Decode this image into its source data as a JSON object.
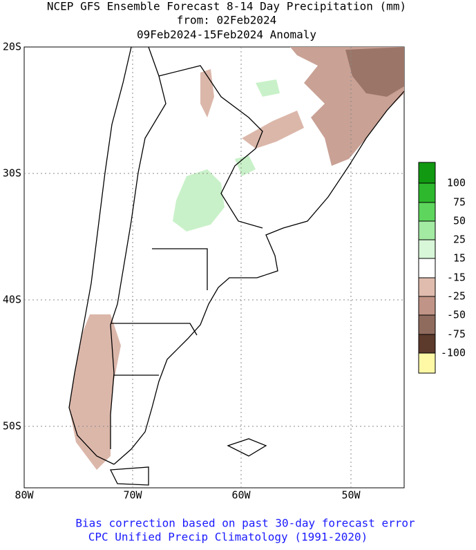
{
  "title": {
    "lines": [
      "NCEP GFS Ensemble Forecast 8-14 Day Precipitation (mm)",
      "from: 02Feb2024",
      "09Feb2024-15Feb2024 Anomaly"
    ]
  },
  "map": {
    "lat_labels": [
      "20S",
      "30S",
      "40S",
      "50S"
    ],
    "lon_labels": [
      "80W",
      "70W",
      "60W",
      "50W"
    ]
  },
  "legend": {
    "labels": [
      "100",
      "75",
      "50",
      "25",
      "15",
      "-15",
      "-25",
      "-50",
      "-75",
      "-100"
    ],
    "colors": [
      "#119911",
      "#2db82d",
      "#5ed65e",
      "#a3eaa3",
      "#d8f6d8",
      "#ffffff",
      "#dfbcae",
      "#c09486",
      "#8f6b5e",
      "#5c3a2c",
      "#fff9a6"
    ]
  },
  "footer": {
    "lines": [
      "Bias correction based on past 30-day forecast error",
      "CPC Unified Precip Climatology (1991-2020)"
    ]
  }
}
